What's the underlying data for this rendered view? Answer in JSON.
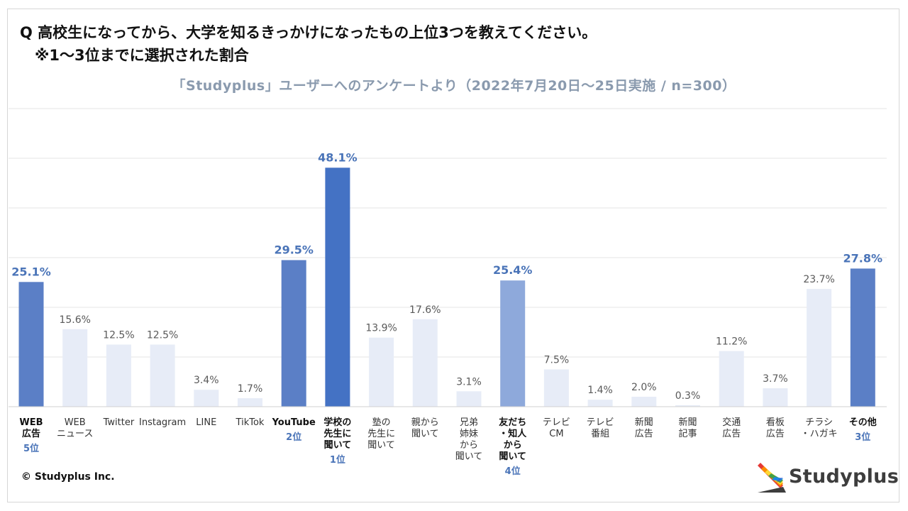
{
  "header": {
    "question": "Q 高校生になってから、大学を知るきっかけになったもの上位3つを教えてください。\n　※1～3位までに選択された割合",
    "subtitle": "「Studyplus」ユーザーへのアンケートより（2022年7月20日～25日実施 / n=300）"
  },
  "footer": {
    "copyright": "© Studyplus Inc.",
    "logo_text": "Studyplus",
    "logo_colors": [
      "#e53935",
      "#fb8c00",
      "#fdd835",
      "#43a047",
      "#1e88e5",
      "#5e35b1"
    ]
  },
  "colors": {
    "rank1": "#4472c4",
    "ranked": "#5b7fc6",
    "rank4": "#8ea9db",
    "other": "#e7ecf7",
    "rank_label": "#4a74b8",
    "value_plain": "#595959",
    "grid": "#e6e6e6"
  },
  "chart_data": {
    "type": "bar",
    "title": "高校生になってから、大学を知るきっかけになったもの上位3つ",
    "ylabel": "",
    "ylim": [
      0,
      60
    ],
    "grid": true,
    "unit": "%",
    "categories": [
      "WEB\n広告",
      "WEB\nニュース",
      "Twitter",
      "Instagram",
      "LINE",
      "TikTok",
      "YouTube",
      "学校の\n先生に\n聞いて",
      "塾の\n先生に\n聞いて",
      "親から\n聞いて",
      "兄弟\n姉妹\nから\n聞いて",
      "友だち\n・知人\nから\n聞いて",
      "テレビ\nCM",
      "テレビ\n番組",
      "新聞\n広告",
      "新聞\n記事",
      "交通\n広告",
      "看板\n広告",
      "チラシ\n・ハガキ",
      "その他"
    ],
    "values": [
      25.1,
      15.6,
      12.5,
      12.5,
      3.4,
      1.7,
      29.5,
      48.1,
      13.9,
      17.6,
      3.1,
      25.4,
      7.5,
      1.4,
      2.0,
      0.3,
      11.2,
      3.7,
      23.7,
      27.8
    ],
    "value_labels": [
      "25.1%",
      "15.6%",
      "12.5%",
      "12.5%",
      "3.4%",
      "1.7%",
      "29.5%",
      "48.1%",
      "13.9%",
      "17.6%",
      "3.1%",
      "25.4%",
      "7.5%",
      "1.4%",
      "2.0%",
      "0.3%",
      "11.2%",
      "3.7%",
      "23.7%",
      "27.8%"
    ],
    "rank_labels": [
      "5位",
      "",
      "",
      "",
      "",
      "",
      "2位",
      "1位",
      "",
      "",
      "",
      "4位",
      "",
      "",
      "",
      "",
      "",
      "",
      "",
      "3位"
    ],
    "highlight": [
      "ranked",
      "",
      "",
      "",
      "",
      "",
      "ranked",
      "rank1",
      "",
      "",
      "",
      "rank4",
      "",
      "",
      "",
      "",
      "",
      "",
      "",
      "ranked"
    ]
  }
}
